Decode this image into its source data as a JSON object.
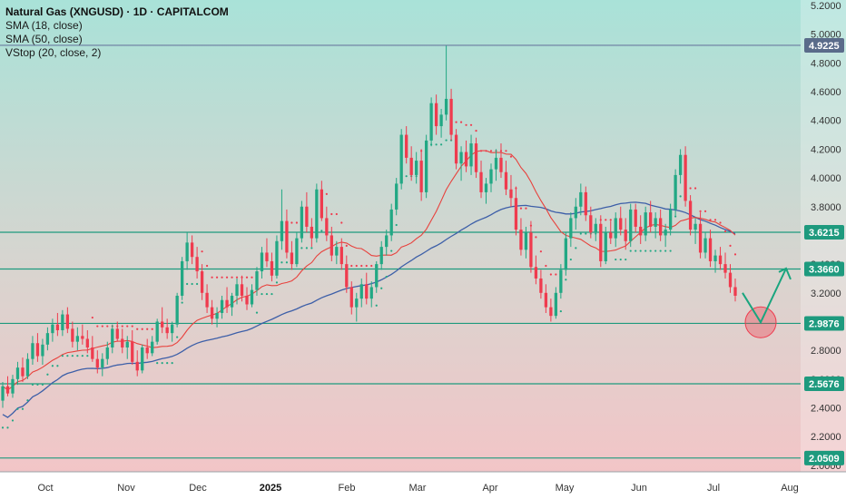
{
  "legend": {
    "title": "Natural Gas (XNGUSD) · 1D · CAPITALCOM",
    "sma18": "SMA (18, close)",
    "sma50": "SMA (50, close)",
    "vstop": "VStop (20, close, 2)"
  },
  "chart_data": {
    "type": "candlestick",
    "title": "Natural Gas (XNGUSD) · 1D · CAPITALCOM",
    "y_ticks": [
      "5.2000",
      "5.0000",
      "4.8000",
      "4.6000",
      "4.4000",
      "4.2000",
      "4.0000",
      "3.8000",
      "3.6000",
      "3.4000",
      "3.2000",
      "2.8000",
      "2.6000",
      "2.4000",
      "2.2000",
      "2.0000"
    ],
    "x_ticks": [
      {
        "label": "Oct",
        "bold": false
      },
      {
        "label": "Nov",
        "bold": false
      },
      {
        "label": "Dec",
        "bold": false
      },
      {
        "label": "2025",
        "bold": true
      },
      {
        "label": "Feb",
        "bold": false
      },
      {
        "label": "Mar",
        "bold": false
      },
      {
        "label": "Apr",
        "bold": false
      },
      {
        "label": "May",
        "bold": false
      },
      {
        "label": "Jun",
        "bold": false
      },
      {
        "label": "Jul",
        "bold": false
      },
      {
        "label": "Aug",
        "bold": false
      }
    ],
    "horizontal_levels": [
      {
        "value": 4.9225,
        "label": "4.9225",
        "tag_color": "#5a6b8a",
        "line_color": "#6b7ba0"
      },
      {
        "value": 3.6215,
        "label": "3.6215",
        "tag_color": "#1e9a7e",
        "line_color": "#1e9a7e"
      },
      {
        "value": 3.366,
        "label": "3.3660",
        "tag_color": "#1e9a7e",
        "line_color": "#1e9a7e"
      },
      {
        "value": 2.9876,
        "label": "2.9876",
        "tag_color": "#1e9a7e",
        "line_color": "#1e9a7e"
      },
      {
        "value": 2.5676,
        "label": "2.5676",
        "tag_color": "#1e9a7e",
        "line_color": "#1e9a7e"
      },
      {
        "value": 2.0509,
        "label": "2.0509",
        "tag_color": "#1e9a7e",
        "line_color": "#1e9a7e"
      }
    ],
    "ohlc": [
      [
        2.45,
        2.58,
        2.4,
        2.55
      ],
      [
        2.55,
        2.62,
        2.48,
        2.5
      ],
      [
        2.5,
        2.63,
        2.47,
        2.6
      ],
      [
        2.6,
        2.72,
        2.56,
        2.68
      ],
      [
        2.68,
        2.75,
        2.58,
        2.62
      ],
      [
        2.62,
        2.78,
        2.6,
        2.74
      ],
      [
        2.74,
        2.9,
        2.7,
        2.85
      ],
      [
        2.85,
        2.92,
        2.72,
        2.76
      ],
      [
        2.76,
        2.88,
        2.7,
        2.84
      ],
      [
        2.84,
        2.96,
        2.8,
        2.92
      ],
      [
        2.92,
        3.02,
        2.86,
        2.98
      ],
      [
        2.98,
        3.06,
        2.9,
        2.94
      ],
      [
        2.94,
        3.08,
        2.9,
        3.05
      ],
      [
        3.05,
        3.1,
        2.92,
        2.95
      ],
      [
        2.95,
        3.0,
        2.82,
        2.86
      ],
      [
        2.86,
        2.96,
        2.8,
        2.9
      ],
      [
        2.9,
        2.98,
        2.84,
        2.88
      ],
      [
        2.88,
        2.94,
        2.78,
        2.82
      ],
      [
        2.82,
        2.9,
        2.72,
        2.74
      ],
      [
        2.74,
        2.8,
        2.64,
        2.68
      ],
      [
        2.68,
        2.78,
        2.62,
        2.74
      ],
      [
        2.74,
        2.86,
        2.7,
        2.82
      ],
      [
        2.82,
        2.98,
        2.78,
        2.95
      ],
      [
        2.95,
        3.0,
        2.86,
        2.88
      ],
      [
        2.88,
        2.95,
        2.78,
        2.82
      ],
      [
        2.82,
        2.9,
        2.74,
        2.86
      ],
      [
        2.86,
        2.94,
        2.7,
        2.72
      ],
      [
        2.72,
        2.8,
        2.62,
        2.66
      ],
      [
        2.66,
        2.84,
        2.64,
        2.82
      ],
      [
        2.82,
        2.88,
        2.74,
        2.78
      ],
      [
        2.78,
        2.9,
        2.76,
        2.86
      ],
      [
        2.86,
        3.02,
        2.84,
        3.0
      ],
      [
        3.0,
        3.1,
        2.92,
        2.96
      ],
      [
        2.96,
        3.02,
        2.88,
        2.92
      ],
      [
        2.92,
        3.0,
        2.86,
        2.98
      ],
      [
        2.98,
        3.2,
        2.96,
        3.18
      ],
      [
        3.18,
        3.45,
        3.15,
        3.42
      ],
      [
        3.42,
        3.62,
        3.36,
        3.55
      ],
      [
        3.55,
        3.6,
        3.4,
        3.45
      ],
      [
        3.45,
        3.52,
        3.3,
        3.35
      ],
      [
        3.35,
        3.4,
        3.15,
        3.2
      ],
      [
        3.2,
        3.26,
        3.06,
        3.1
      ],
      [
        3.1,
        3.15,
        2.98,
        3.02
      ],
      [
        3.02,
        3.1,
        2.96,
        3.06
      ],
      [
        3.06,
        3.18,
        3.02,
        3.15
      ],
      [
        3.15,
        3.24,
        3.06,
        3.1
      ],
      [
        3.1,
        3.2,
        3.04,
        3.18
      ],
      [
        3.18,
        3.3,
        3.12,
        3.26
      ],
      [
        3.26,
        3.32,
        3.14,
        3.18
      ],
      [
        3.18,
        3.24,
        3.08,
        3.12
      ],
      [
        3.12,
        3.26,
        3.1,
        3.22
      ],
      [
        3.22,
        3.38,
        3.18,
        3.35
      ],
      [
        3.35,
        3.52,
        3.3,
        3.48
      ],
      [
        3.48,
        3.58,
        3.38,
        3.42
      ],
      [
        3.42,
        3.48,
        3.28,
        3.32
      ],
      [
        3.32,
        3.6,
        3.3,
        3.56
      ],
      [
        3.56,
        3.92,
        3.5,
        3.7
      ],
      [
        3.7,
        3.78,
        3.44,
        3.48
      ],
      [
        3.48,
        3.56,
        3.36,
        3.4
      ],
      [
        3.4,
        3.62,
        3.38,
        3.58
      ],
      [
        3.58,
        3.84,
        3.55,
        3.8
      ],
      [
        3.8,
        3.9,
        3.62,
        3.66
      ],
      [
        3.66,
        3.72,
        3.52,
        3.58
      ],
      [
        3.58,
        3.96,
        3.55,
        3.92
      ],
      [
        3.92,
        3.98,
        3.7,
        3.72
      ],
      [
        3.72,
        3.8,
        3.56,
        3.6
      ],
      [
        3.6,
        3.66,
        3.42,
        3.46
      ],
      [
        3.46,
        3.56,
        3.4,
        3.52
      ],
      [
        3.52,
        3.58,
        3.36,
        3.4
      ],
      [
        3.4,
        3.46,
        3.2,
        3.24
      ],
      [
        3.24,
        3.28,
        3.05,
        3.1
      ],
      [
        3.1,
        3.2,
        3.0,
        3.16
      ],
      [
        3.16,
        3.3,
        3.1,
        3.26
      ],
      [
        3.26,
        3.34,
        3.12,
        3.16
      ],
      [
        3.16,
        3.28,
        3.1,
        3.24
      ],
      [
        3.24,
        3.42,
        3.2,
        3.4
      ],
      [
        3.4,
        3.56,
        3.36,
        3.52
      ],
      [
        3.52,
        3.64,
        3.46,
        3.6
      ],
      [
        3.6,
        3.82,
        3.56,
        3.78
      ],
      [
        3.78,
        4.0,
        3.74,
        3.96
      ],
      [
        3.96,
        4.34,
        3.92,
        4.3
      ],
      [
        4.3,
        4.36,
        4.1,
        4.14
      ],
      [
        4.14,
        4.22,
        3.98,
        4.02
      ],
      [
        4.02,
        4.18,
        3.96,
        4.12
      ],
      [
        4.12,
        4.2,
        3.84,
        3.9
      ],
      [
        3.9,
        4.3,
        3.86,
        4.26
      ],
      [
        4.26,
        4.56,
        4.22,
        4.52
      ],
      [
        4.52,
        4.58,
        4.3,
        4.36
      ],
      [
        4.36,
        4.48,
        4.28,
        4.44
      ],
      [
        4.44,
        4.92,
        4.4,
        4.55
      ],
      [
        4.55,
        4.62,
        4.26,
        4.3
      ],
      [
        4.3,
        4.34,
        4.06,
        4.1
      ],
      [
        4.1,
        4.22,
        3.98,
        4.18
      ],
      [
        4.18,
        4.26,
        4.04,
        4.08
      ],
      [
        4.08,
        4.3,
        4.02,
        4.24
      ],
      [
        4.24,
        4.28,
        4.0,
        4.04
      ],
      [
        4.04,
        4.12,
        3.86,
        3.9
      ],
      [
        3.9,
        4.0,
        3.82,
        3.96
      ],
      [
        3.96,
        4.1,
        3.9,
        4.06
      ],
      [
        4.06,
        4.2,
        3.98,
        4.14
      ],
      [
        4.14,
        4.24,
        4.0,
        4.04
      ],
      [
        4.04,
        4.12,
        3.88,
        3.92
      ],
      [
        3.92,
        4.02,
        3.8,
        3.86
      ],
      [
        3.86,
        3.94,
        3.6,
        3.64
      ],
      [
        3.64,
        3.72,
        3.46,
        3.5
      ],
      [
        3.5,
        3.66,
        3.44,
        3.62
      ],
      [
        3.62,
        3.7,
        3.34,
        3.38
      ],
      [
        3.38,
        3.46,
        3.26,
        3.3
      ],
      [
        3.3,
        3.36,
        3.16,
        3.2
      ],
      [
        3.2,
        3.26,
        3.06,
        3.1
      ],
      [
        3.1,
        3.16,
        3.0,
        3.04
      ],
      [
        3.04,
        3.24,
        3.02,
        3.2
      ],
      [
        3.2,
        3.4,
        3.16,
        3.36
      ],
      [
        3.36,
        3.62,
        3.32,
        3.58
      ],
      [
        3.58,
        3.76,
        3.52,
        3.72
      ],
      [
        3.72,
        3.86,
        3.64,
        3.8
      ],
      [
        3.8,
        3.96,
        3.74,
        3.9
      ],
      [
        3.9,
        3.94,
        3.7,
        3.74
      ],
      [
        3.74,
        3.8,
        3.58,
        3.62
      ],
      [
        3.62,
        3.72,
        3.56,
        3.68
      ],
      [
        3.68,
        3.74,
        3.38,
        3.42
      ],
      [
        3.42,
        3.66,
        3.4,
        3.62
      ],
      [
        3.62,
        3.7,
        3.54,
        3.58
      ],
      [
        3.58,
        3.76,
        3.52,
        3.72
      ],
      [
        3.72,
        3.8,
        3.6,
        3.64
      ],
      [
        3.64,
        3.72,
        3.5,
        3.56
      ],
      [
        3.56,
        3.82,
        3.52,
        3.78
      ],
      [
        3.78,
        3.82,
        3.62,
        3.66
      ],
      [
        3.66,
        3.74,
        3.54,
        3.6
      ],
      [
        3.6,
        3.8,
        3.56,
        3.76
      ],
      [
        3.76,
        3.84,
        3.62,
        3.66
      ],
      [
        3.66,
        3.76,
        3.58,
        3.72
      ],
      [
        3.72,
        3.78,
        3.56,
        3.6
      ],
      [
        3.6,
        3.68,
        3.52,
        3.64
      ],
      [
        3.64,
        3.82,
        3.6,
        3.78
      ],
      [
        3.78,
        4.06,
        3.74,
        4.02
      ],
      [
        4.02,
        4.2,
        3.96,
        4.16
      ],
      [
        4.16,
        4.22,
        3.8,
        3.84
      ],
      [
        3.84,
        3.88,
        3.6,
        3.64
      ],
      [
        3.64,
        3.72,
        3.54,
        3.68
      ],
      [
        3.68,
        3.76,
        3.44,
        3.48
      ],
      [
        3.48,
        3.62,
        3.44,
        3.58
      ],
      [
        3.58,
        3.64,
        3.38,
        3.42
      ],
      [
        3.42,
        3.5,
        3.34,
        3.46
      ],
      [
        3.46,
        3.52,
        3.36,
        3.4
      ],
      [
        3.4,
        3.48,
        3.3,
        3.34
      ],
      [
        3.34,
        3.4,
        3.2,
        3.24
      ],
      [
        3.24,
        3.3,
        3.14,
        3.18
      ]
    ],
    "projection": [
      [
        3.2,
        2.995,
        3.37
      ]
    ]
  }
}
